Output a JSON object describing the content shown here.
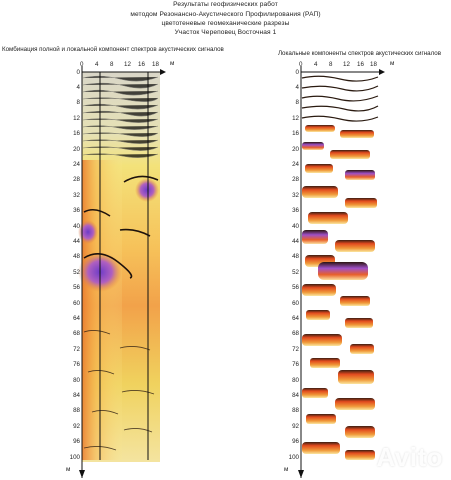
{
  "header": {
    "line1": "Результаты геофизических работ",
    "line2": "методом  Резонансно-Акустического  Профилирования  (РАП)",
    "line3": "цветотеневые геомеханические разрезы",
    "line4": "Участок  Череповец Восточная 1"
  },
  "panels": [
    {
      "title": "Комбинация полной и локальной компонент спектров акустических сигналов"
    },
    {
      "title": "Локальные компоненты спектров акустических сигналов"
    }
  ],
  "x_ticks": [
    "0",
    "4",
    "8",
    "12",
    "16",
    "18"
  ],
  "x_unit": "м",
  "y_ticks": [
    "0",
    "4",
    "8",
    "12",
    "16",
    "20",
    "24",
    "28",
    "32",
    "36",
    "40",
    "44",
    "48",
    "52",
    "56",
    "60",
    "64",
    "68",
    "72",
    "76",
    "80",
    "84",
    "88",
    "92",
    "96",
    "100"
  ],
  "y_unit": "м",
  "colors": {
    "orange": "#e8772a",
    "yellow": "#f2e35a",
    "purple": "#8a4fd0",
    "dark": "#2a1a10",
    "pale": "#fff7c8"
  },
  "watermark": "Avito"
}
